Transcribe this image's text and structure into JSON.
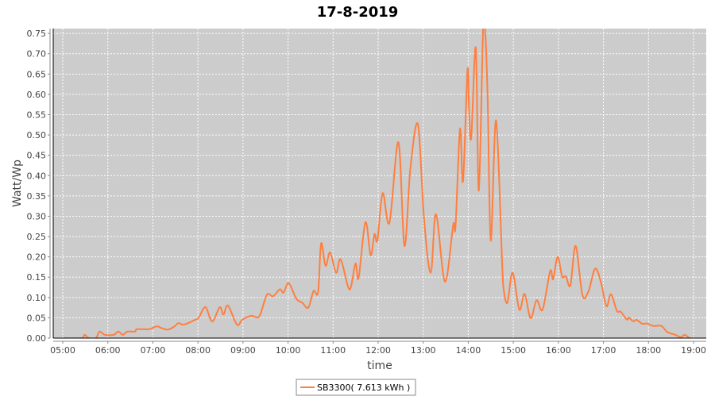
{
  "chart_data": {
    "type": "line",
    "title": "17-8-2019",
    "xlabel": "time",
    "ylabel": "Watt/Wp",
    "ylim": [
      0,
      0.762
    ],
    "xlim": [
      "05:00",
      "19:00"
    ],
    "x_ticks": [
      "05:00",
      "06:00",
      "07:00",
      "08:00",
      "09:00",
      "10:00",
      "11:00",
      "12:00",
      "13:00",
      "14:00",
      "15:00",
      "16:00",
      "17:00",
      "18:00",
      "19:00"
    ],
    "y_ticks": [
      "0.00",
      "0.05",
      "0.10",
      "0.15",
      "0.20",
      "0.25",
      "0.30",
      "0.35",
      "0.40",
      "0.45",
      "0.50",
      "0.55",
      "0.60",
      "0.65",
      "0.70",
      "0.75"
    ],
    "grid": true,
    "legend_position": "bottom",
    "colors": {
      "plot_background": "#cccccc",
      "grid": "#ffffff",
      "series": "#ff7f3f"
    },
    "series": [
      {
        "name": "SB3300( 7.613 kWh )",
        "x": [
          "05:02",
          "05:25",
          "05:29",
          "05:35",
          "05:44",
          "05:49",
          "05:56",
          "06:08",
          "06:14",
          "06:20",
          "06:26",
          "06:36",
          "06:39",
          "06:55",
          "07:05",
          "07:11",
          "07:20",
          "07:29",
          "07:34",
          "07:40",
          "07:47",
          "07:56",
          "08:01",
          "08:10",
          "08:19",
          "08:29",
          "08:34",
          "08:40",
          "08:52",
          "08:59",
          "09:11",
          "09:18",
          "09:23",
          "09:32",
          "09:40",
          "09:49",
          "09:54",
          "10:01",
          "10:11",
          "10:19",
          "10:27",
          "10:34",
          "10:40",
          "10:44",
          "10:50",
          "10:56",
          "11:04",
          "11:10",
          "11:20",
          "11:24",
          "11:30",
          "11:34",
          "11:43",
          "11:50",
          "11:55",
          "11:59",
          "12:06",
          "12:15",
          "12:27",
          "12:35",
          "12:43",
          "12:53",
          "13:01",
          "13:10",
          "13:17",
          "13:29",
          "13:40",
          "13:43",
          "13:49",
          "13:53",
          "13:59",
          "14:01",
          "14:04",
          "14:10",
          "14:14",
          "14:20",
          "14:23",
          "14:26",
          "14:30",
          "14:37",
          "14:45",
          "14:47",
          "14:52",
          "14:59",
          "15:08",
          "15:15",
          "15:23",
          "15:31",
          "15:39",
          "15:49",
          "15:53",
          "15:59",
          "16:05",
          "16:10",
          "16:16",
          "16:23",
          "16:32",
          "16:40",
          "16:49",
          "16:57",
          "17:04",
          "17:10",
          "17:18",
          "17:23",
          "17:31",
          "17:34",
          "17:40",
          "17:44",
          "17:52",
          "17:58",
          "18:06",
          "18:17",
          "18:25",
          "18:36",
          "18:43",
          "18:48",
          "18:53",
          "18:55"
        ],
        "values": [
          0,
          0,
          0.008,
          0,
          0,
          0.016,
          0.008,
          0.008,
          0.016,
          0.008,
          0.016,
          0.016,
          0.022,
          0.022,
          0.029,
          0.025,
          0.021,
          0.029,
          0.037,
          0.033,
          0.037,
          0.045,
          0.05,
          0.076,
          0.041,
          0.076,
          0.058,
          0.08,
          0.033,
          0.045,
          0.055,
          0.051,
          0.058,
          0.107,
          0.103,
          0.12,
          0.112,
          0.135,
          0.097,
          0.087,
          0.075,
          0.116,
          0.113,
          0.233,
          0.178,
          0.211,
          0.161,
          0.194,
          0.126,
          0.128,
          0.184,
          0.148,
          0.285,
          0.204,
          0.256,
          0.241,
          0.357,
          0.284,
          0.482,
          0.227,
          0.419,
          0.526,
          0.295,
          0.161,
          0.305,
          0.139,
          0.279,
          0.275,
          0.515,
          0.386,
          0.66,
          0.562,
          0.494,
          0.715,
          0.363,
          0.77,
          0.74,
          0.578,
          0.24,
          0.536,
          0.188,
          0.122,
          0.087,
          0.161,
          0.07,
          0.109,
          0.049,
          0.093,
          0.07,
          0.165,
          0.145,
          0.2,
          0.152,
          0.152,
          0.13,
          0.227,
          0.106,
          0.115,
          0.171,
          0.135,
          0.078,
          0.108,
          0.067,
          0.065,
          0.046,
          0.05,
          0.041,
          0.045,
          0.035,
          0.036,
          0.03,
          0.03,
          0.015,
          0.008,
          0.002,
          0.008,
          0.002,
          0
        ]
      }
    ]
  }
}
